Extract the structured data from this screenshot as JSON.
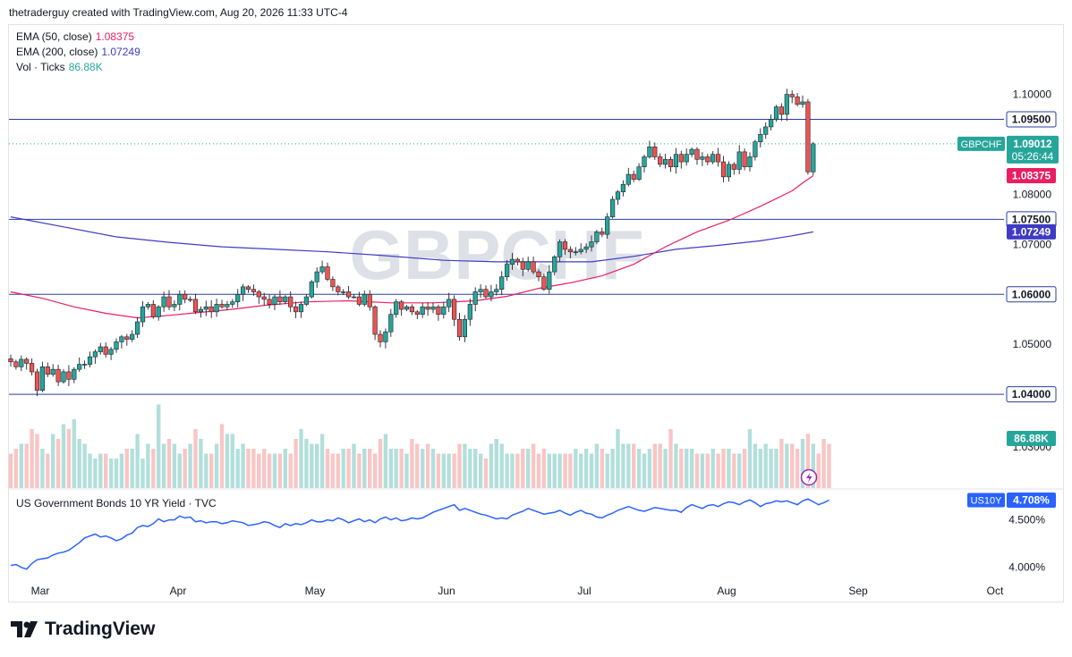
{
  "header": {
    "attribution": "thetraderguy created with TradingView.com, Aug 20, 2026 11:33 UTC-4"
  },
  "legend": {
    "ema50_label": "EMA (50, close)",
    "ema50_value": "1.08375",
    "ema200_label": "EMA (200, close)",
    "ema200_value": "1.07249",
    "vol_label": "Vol · Ticks",
    "vol_value": "86.88K"
  },
  "watermark": "GBPCHF",
  "colors": {
    "up": "#26a69a",
    "down": "#ef5350",
    "ema50": "#e91e63",
    "ema200": "#3f3bc4",
    "hline": "#2a3f9d",
    "yield": "#2962ff",
    "vol_up": "#b2dfdb",
    "vol_down": "#f7c6c5"
  },
  "footer": {
    "brand": "TradingView"
  },
  "chart_data": [
    {
      "type": "candlestick",
      "symbol": "GBPCHF",
      "y_axis_ticks": [
        "1.10000",
        "1.08000",
        "1.07000",
        "1.05000"
      ],
      "ylim": [
        1.0402,
        1.1035
      ],
      "price_badges": [
        {
          "label": "1.09500",
          "value": 1.095,
          "kind": "hline"
        },
        {
          "label": "1.08375",
          "value": 1.08375,
          "kind": "ema50"
        },
        {
          "label": "1.07500",
          "value": 1.075,
          "kind": "hline"
        },
        {
          "label": "1.07249",
          "value": 1.07249,
          "kind": "ema200"
        },
        {
          "label": "1.06000",
          "value": 1.06,
          "kind": "hline"
        },
        {
          "label": "1.04000",
          "value": 1.04,
          "kind": "hline"
        }
      ],
      "last_price": {
        "symbol": "GBPCHF",
        "price": "1.09012",
        "countdown": "05:26:44",
        "value": 1.09012
      },
      "horizontal_levels": [
        1.095,
        1.075,
        1.06,
        1.04
      ],
      "x_axis_ticks": [
        "Mar",
        "Apr",
        "May",
        "Jun",
        "Jul",
        "Aug",
        "Sep",
        "Oct"
      ],
      "volume_last": "86.88K",
      "candles_close": [
        1.0465,
        1.0455,
        1.047,
        1.0462,
        1.0445,
        1.0408,
        1.0455,
        1.044,
        1.045,
        1.0425,
        1.0445,
        1.043,
        1.045,
        1.046,
        1.046,
        1.0475,
        1.0485,
        1.0495,
        1.048,
        1.049,
        1.0505,
        1.0515,
        1.051,
        1.052,
        1.0545,
        1.0575,
        1.058,
        1.0555,
        1.0575,
        1.0595,
        1.0575,
        1.058,
        1.06,
        1.059,
        1.059,
        1.0565,
        1.057,
        1.0575,
        1.0565,
        1.058,
        1.0575,
        1.058,
        1.0585,
        1.06,
        1.0615,
        1.061,
        1.0605,
        1.0595,
        1.059,
        1.058,
        1.0595,
        1.0585,
        1.0595,
        1.0575,
        1.0565,
        1.058,
        1.0595,
        1.0625,
        1.0645,
        1.0655,
        1.063,
        1.0615,
        1.0605,
        1.0605,
        1.0595,
        1.0595,
        1.058,
        1.06,
        1.0575,
        1.052,
        1.0505,
        1.0525,
        1.056,
        1.0585,
        1.057,
        1.0575,
        1.0565,
        1.056,
        1.0575,
        1.057,
        1.0575,
        1.056,
        1.0575,
        1.059,
        1.055,
        1.0515,
        1.055,
        1.058,
        1.0605,
        1.061,
        1.0595,
        1.0605,
        1.061,
        1.0635,
        1.066,
        1.067,
        1.0665,
        1.065,
        1.0665,
        1.0645,
        1.0635,
        1.061,
        1.0645,
        1.0675,
        1.0705,
        1.069,
        1.0685,
        1.0685,
        1.069,
        1.0695,
        1.0705,
        1.0725,
        1.072,
        1.0755,
        1.079,
        1.0805,
        1.082,
        1.084,
        1.083,
        1.0855,
        1.0875,
        1.0895,
        1.0875,
        1.086,
        1.087,
        1.0855,
        1.088,
        1.0865,
        1.088,
        1.089,
        1.087,
        1.0875,
        1.0865,
        1.088,
        1.0865,
        1.0835,
        1.086,
        1.085,
        1.0885,
        1.0855,
        1.0875,
        1.0905,
        1.092,
        1.0935,
        1.095,
        1.0975,
        1.096,
        1.1,
        1.0995,
        1.098,
        1.0985,
        1.0845,
        1.09012
      ],
      "ema50_points": [
        [
          0,
          1.0605
        ],
        [
          6,
          1.0592
        ],
        [
          12,
          1.0575
        ],
        [
          18,
          1.0562
        ],
        [
          24,
          1.0553
        ],
        [
          30,
          1.0558
        ],
        [
          36,
          1.0564
        ],
        [
          42,
          1.057
        ],
        [
          48,
          1.0578
        ],
        [
          56,
          1.0585
        ],
        [
          64,
          1.0587
        ],
        [
          72,
          1.0583
        ],
        [
          80,
          1.0583
        ],
        [
          88,
          1.0587
        ],
        [
          94,
          1.0596
        ],
        [
          100,
          1.0612
        ],
        [
          106,
          1.0623
        ],
        [
          112,
          1.0637
        ],
        [
          118,
          1.066
        ],
        [
          124,
          1.0695
        ],
        [
          130,
          1.0725
        ],
        [
          136,
          1.0748
        ],
        [
          142,
          1.0776
        ],
        [
          148,
          1.0807
        ],
        [
          150,
          1.0823
        ],
        [
          152,
          1.08375
        ]
      ],
      "ema200_points": [
        [
          0,
          1.0755
        ],
        [
          10,
          1.0735
        ],
        [
          20,
          1.0715
        ],
        [
          30,
          1.0704
        ],
        [
          40,
          1.0695
        ],
        [
          50,
          1.069
        ],
        [
          60,
          1.0685
        ],
        [
          70,
          1.0678
        ],
        [
          82,
          1.0668
        ],
        [
          92,
          1.0665
        ],
        [
          100,
          1.0665
        ],
        [
          110,
          1.0665
        ],
        [
          118,
          1.0676
        ],
        [
          126,
          1.069
        ],
        [
          134,
          1.0698
        ],
        [
          142,
          1.0707
        ],
        [
          148,
          1.0717
        ],
        [
          152,
          1.07249
        ]
      ],
      "volume": [
        0.35,
        0.4,
        0.45,
        0.45,
        0.6,
        0.55,
        0.4,
        0.35,
        0.55,
        0.5,
        0.65,
        0.6,
        0.7,
        0.5,
        0.45,
        0.35,
        0.3,
        0.35,
        0.35,
        0.3,
        0.3,
        0.35,
        0.4,
        0.4,
        0.55,
        0.3,
        0.45,
        0.4,
        0.85,
        0.45,
        0.5,
        0.45,
        0.35,
        0.4,
        0.45,
        0.6,
        0.5,
        0.35,
        0.35,
        0.45,
        0.65,
        0.55,
        0.55,
        0.4,
        0.45,
        0.4,
        0.4,
        0.35,
        0.4,
        0.35,
        0.35,
        0.35,
        0.4,
        0.35,
        0.5,
        0.6,
        0.5,
        0.45,
        0.45,
        0.55,
        0.4,
        0.35,
        0.35,
        0.4,
        0.4,
        0.45,
        0.35,
        0.4,
        0.4,
        0.35,
        0.5,
        0.55,
        0.4,
        0.4,
        0.4,
        0.35,
        0.5,
        0.45,
        0.4,
        0.45,
        0.4,
        0.35,
        0.35,
        0.35,
        0.35,
        0.45,
        0.45,
        0.4,
        0.4,
        0.35,
        0.3,
        0.45,
        0.5,
        0.45,
        0.35,
        0.35,
        0.35,
        0.4,
        0.4,
        0.45,
        0.35,
        0.4,
        0.35,
        0.35,
        0.35,
        0.35,
        0.35,
        0.4,
        0.35,
        0.4,
        0.35,
        0.45,
        0.4,
        0.35,
        0.4,
        0.6,
        0.45,
        0.45,
        0.45,
        0.4,
        0.35,
        0.4,
        0.45,
        0.45,
        0.4,
        0.6,
        0.45,
        0.4,
        0.4,
        0.4,
        0.35,
        0.35,
        0.35,
        0.4,
        0.35,
        0.4,
        0.4,
        0.35,
        0.35,
        0.4,
        0.6,
        0.45,
        0.4,
        0.45,
        0.4,
        0.4,
        0.5,
        0.45,
        0.45,
        0.4,
        0.5,
        0.55,
        0.45,
        0.35,
        0.5,
        0.45
      ]
    },
    {
      "type": "line",
      "series": [
        {
          "name": "US Government Bonds 10 YR Yield · TVC"
        }
      ],
      "y_axis_ticks": [
        "4.500%",
        "4.000%"
      ],
      "ylim": [
        3.95,
        4.75
      ],
      "last_value": {
        "symbol": "US10Y",
        "label": "4.708%",
        "value": 4.708
      },
      "values": [
        4.02,
        4.03,
        4.0,
        3.98,
        4.04,
        4.08,
        4.09,
        4.1,
        4.13,
        4.15,
        4.16,
        4.18,
        4.22,
        4.26,
        4.31,
        4.33,
        4.35,
        4.32,
        4.33,
        4.31,
        4.28,
        4.3,
        4.34,
        4.36,
        4.42,
        4.44,
        4.43,
        4.46,
        4.51,
        4.48,
        4.5,
        4.5,
        4.54,
        4.52,
        4.53,
        4.48,
        4.49,
        4.47,
        4.48,
        4.48,
        4.46,
        4.47,
        4.49,
        4.48,
        4.47,
        4.44,
        4.45,
        4.46,
        4.48,
        4.47,
        4.44,
        4.42,
        4.46,
        4.44,
        4.46,
        4.45,
        4.47,
        4.5,
        4.48,
        4.48,
        4.5,
        4.49,
        4.52,
        4.5,
        4.47,
        4.49,
        4.51,
        4.48,
        4.5,
        4.47,
        4.51,
        4.53,
        4.5,
        4.52,
        4.49,
        4.5,
        4.52,
        4.51,
        4.52,
        4.55,
        4.58,
        4.6,
        4.62,
        4.64,
        4.66,
        4.6,
        4.62,
        4.6,
        4.58,
        4.56,
        4.55,
        4.53,
        4.51,
        4.52,
        4.51,
        4.55,
        4.57,
        4.59,
        4.62,
        4.6,
        4.58,
        4.56,
        4.57,
        4.58,
        4.6,
        4.57,
        4.55,
        4.58,
        4.6,
        4.57,
        4.56,
        4.53,
        4.52,
        4.55,
        4.57,
        4.6,
        4.62,
        4.64,
        4.62,
        4.6,
        4.59,
        4.61,
        4.63,
        4.62,
        4.61,
        4.6,
        4.6,
        4.58,
        4.63,
        4.66,
        4.64,
        4.62,
        4.65,
        4.66,
        4.64,
        4.67,
        4.69,
        4.68,
        4.66,
        4.69,
        4.71,
        4.68,
        4.64,
        4.67,
        4.68,
        4.7,
        4.69,
        4.7,
        4.68,
        4.66,
        4.7,
        4.72,
        4.69,
        4.66,
        4.68,
        4.708
      ]
    }
  ]
}
